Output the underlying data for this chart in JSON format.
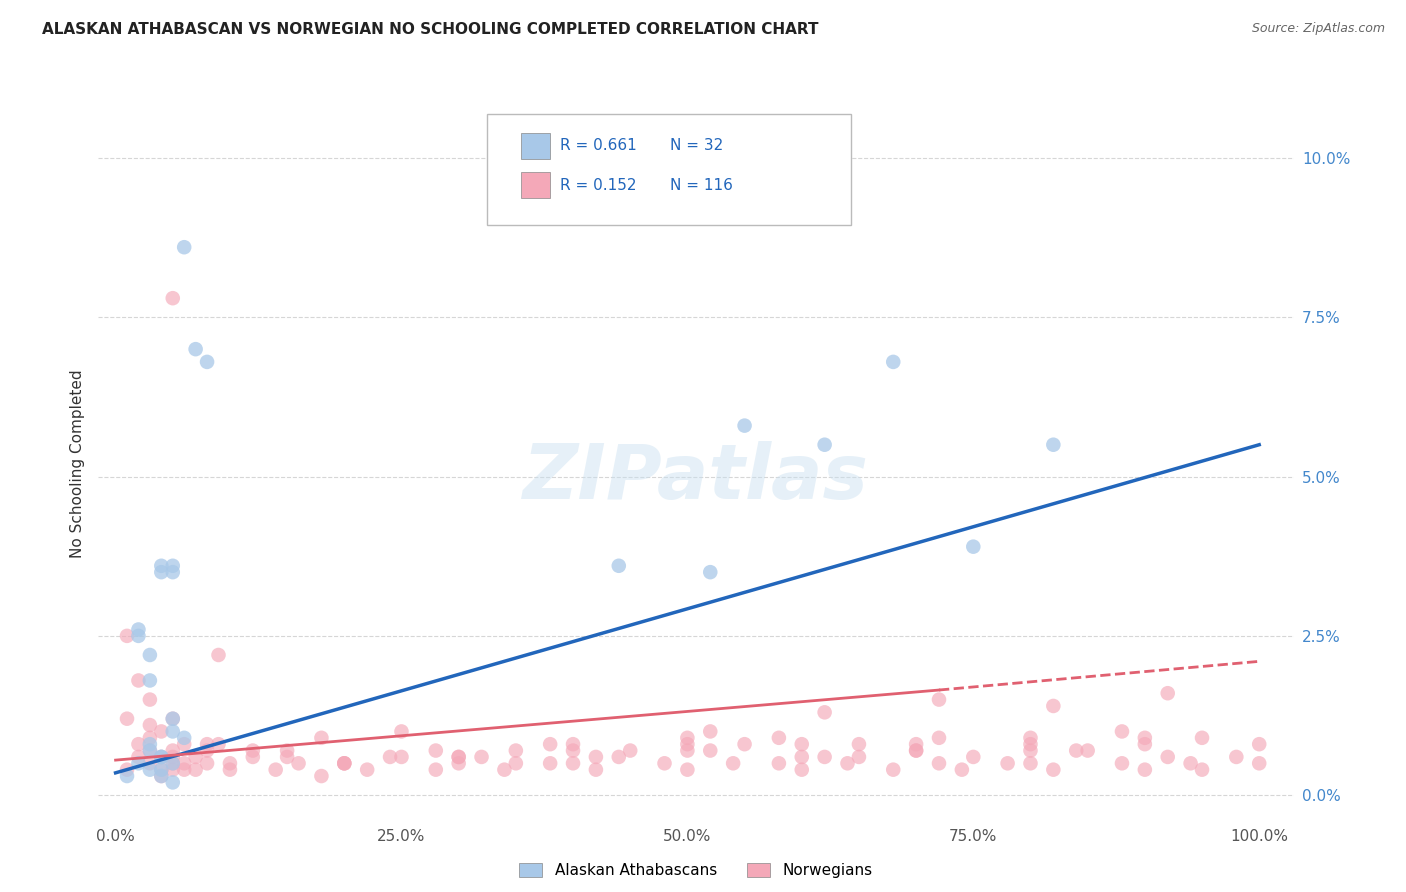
{
  "title": "ALASKAN ATHABASCAN VS NORWEGIAN NO SCHOOLING COMPLETED CORRELATION CHART",
  "source": "Source: ZipAtlas.com",
  "xlabel_tick_vals": [
    0,
    25,
    50,
    75,
    100
  ],
  "ylabel_tick_vals": [
    0,
    2.5,
    5.0,
    7.5,
    10.0
  ],
  "xlim": [
    -1.5,
    103
  ],
  "ylim": [
    -0.4,
    10.8
  ],
  "ylabel": "No Schooling Completed",
  "blue_R": "0.661",
  "blue_N": "32",
  "pink_R": "0.152",
  "pink_N": "116",
  "blue_color": "#a8c8e8",
  "pink_color": "#f4a8b8",
  "blue_line_color": "#2266bb",
  "pink_line_color": "#e06070",
  "watermark": "ZIPatlas",
  "blue_scatter_x": [
    1,
    2,
    3,
    4,
    5,
    2,
    3,
    4,
    5,
    3,
    4,
    5,
    6,
    4,
    5,
    3,
    2,
    4,
    5,
    6,
    7,
    8,
    5,
    4,
    3,
    44,
    52,
    55,
    62,
    68,
    75,
    82
  ],
  "blue_scatter_y": [
    0.3,
    0.5,
    0.8,
    0.6,
    1.2,
    2.5,
    1.8,
    0.4,
    0.5,
    0.7,
    0.6,
    1.0,
    0.9,
    3.5,
    3.6,
    2.2,
    2.6,
    0.3,
    0.2,
    8.6,
    7.0,
    6.8,
    3.5,
    3.6,
    0.4,
    3.6,
    3.5,
    5.8,
    5.5,
    6.8,
    3.9,
    5.5
  ],
  "pink_scatter_x": [
    1,
    1,
    1,
    2,
    2,
    2,
    3,
    3,
    3,
    3,
    4,
    4,
    4,
    4,
    5,
    5,
    5,
    5,
    6,
    6,
    6,
    7,
    7,
    8,
    8,
    9,
    10,
    12,
    14,
    15,
    16,
    18,
    20,
    22,
    24,
    25,
    28,
    30,
    32,
    34,
    35,
    38,
    40,
    42,
    44,
    45,
    48,
    50,
    52,
    54,
    55,
    58,
    60,
    62,
    64,
    65,
    68,
    70,
    72,
    74,
    75,
    78,
    80,
    82,
    84,
    85,
    88,
    90,
    92,
    94,
    95,
    98,
    100,
    3,
    5,
    8,
    12,
    18,
    25,
    35,
    42,
    50,
    58,
    65,
    72,
    80,
    88,
    95,
    15,
    28,
    38,
    52,
    62,
    72,
    82,
    92,
    20,
    30,
    40,
    50,
    60,
    70,
    80,
    90,
    10,
    20,
    30,
    40,
    50,
    60,
    70,
    80,
    90,
    100,
    5,
    9
  ],
  "pink_scatter_y": [
    2.5,
    0.4,
    1.2,
    0.6,
    1.8,
    0.8,
    0.5,
    0.7,
    1.1,
    0.9,
    0.4,
    0.6,
    0.3,
    1.0,
    0.5,
    0.7,
    0.4,
    0.6,
    0.5,
    0.4,
    0.8,
    0.4,
    0.6,
    0.5,
    0.7,
    0.8,
    0.5,
    0.6,
    0.4,
    0.7,
    0.5,
    0.3,
    0.5,
    0.4,
    0.6,
    0.6,
    0.4,
    0.5,
    0.6,
    0.4,
    0.5,
    0.5,
    0.7,
    0.4,
    0.6,
    0.7,
    0.5,
    0.4,
    0.7,
    0.5,
    0.8,
    0.5,
    0.4,
    0.6,
    0.5,
    0.6,
    0.4,
    0.7,
    0.5,
    0.4,
    0.6,
    0.5,
    0.5,
    0.4,
    0.7,
    0.7,
    0.5,
    0.4,
    0.6,
    0.5,
    0.4,
    0.6,
    0.5,
    1.5,
    1.2,
    0.8,
    0.7,
    0.9,
    1.0,
    0.7,
    0.6,
    0.8,
    0.9,
    0.8,
    0.9,
    0.8,
    1.0,
    0.9,
    0.6,
    0.7,
    0.8,
    1.0,
    1.3,
    1.5,
    1.4,
    1.6,
    0.5,
    0.6,
    0.8,
    0.9,
    0.8,
    0.7,
    0.9,
    0.8,
    0.4,
    0.5,
    0.6,
    0.5,
    0.7,
    0.6,
    0.8,
    0.7,
    0.9,
    0.8,
    7.8,
    2.2
  ],
  "blue_line_x0": 0,
  "blue_line_x1": 100,
  "blue_line_y0": 0.35,
  "blue_line_y1": 5.5,
  "pink_solid_x0": 0,
  "pink_solid_x1": 72,
  "pink_solid_y0": 0.55,
  "pink_solid_y1": 1.65,
  "pink_dash_x0": 72,
  "pink_dash_x1": 100,
  "pink_dash_y0": 1.65,
  "pink_dash_y1": 2.1
}
